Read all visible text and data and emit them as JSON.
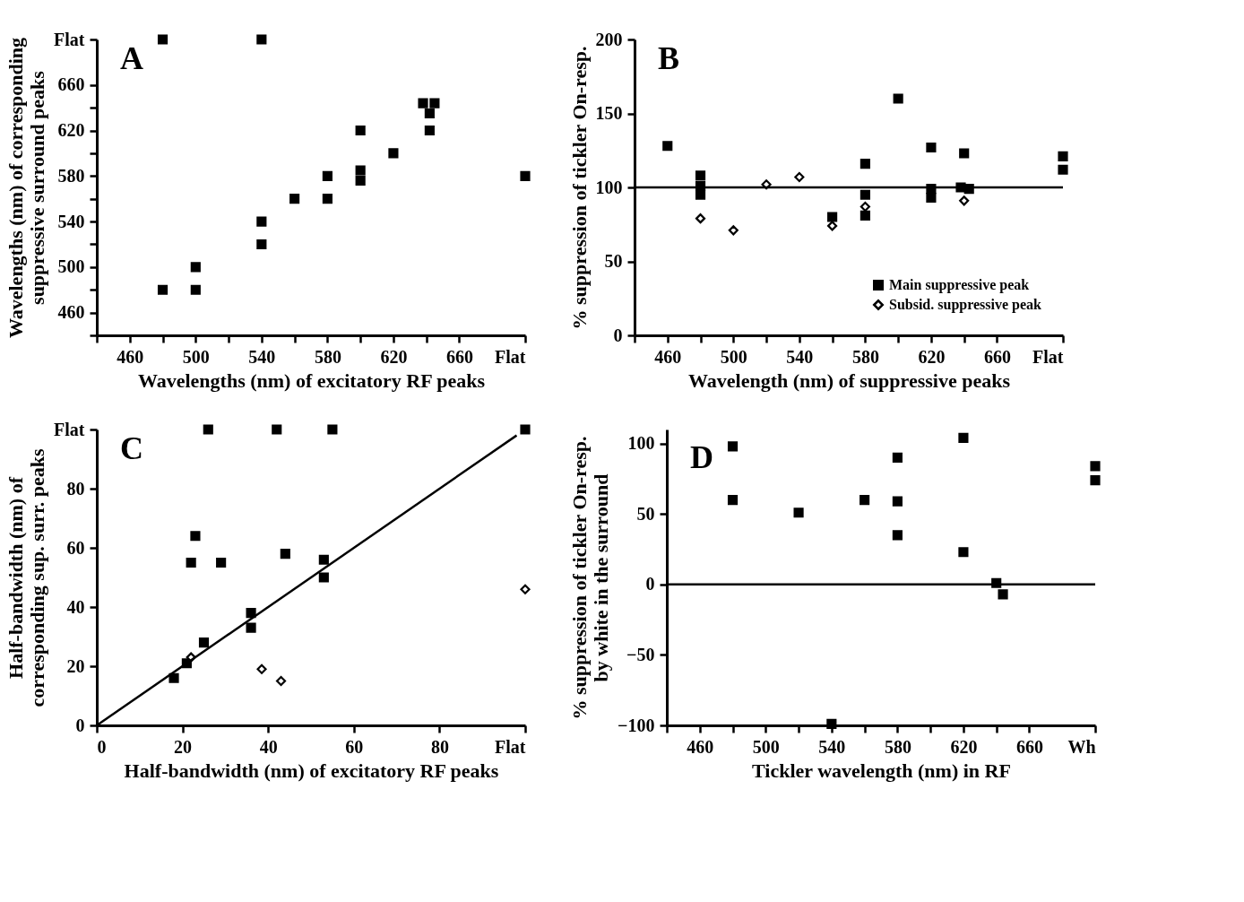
{
  "chart_data": [
    {
      "type": "scatter",
      "title": "A",
      "xlabel": "Wavelengths (nm) of excitatory RF peaks",
      "ylabel": "Wavelengths (nm) of corresponding suppressive surround peaks",
      "xlim": [
        440,
        700
      ],
      "ylim": [
        440,
        700
      ],
      "xticks": [
        {
          "value": 440,
          "label": null
        },
        460,
        {
          "value": 480,
          "label": null
        },
        500,
        {
          "value": 520,
          "label": null
        },
        540,
        {
          "value": 560,
          "label": null
        },
        580,
        {
          "value": 600,
          "label": null
        },
        620,
        {
          "value": 640,
          "label": null
        },
        660,
        {
          "value": 700,
          "label": "Flat"
        }
      ],
      "yticks": [
        {
          "value": 440,
          "label": null
        },
        460,
        {
          "value": 480,
          "label": null
        },
        500,
        {
          "value": 520,
          "label": null
        },
        540,
        {
          "value": 560,
          "label": null
        },
        580,
        {
          "value": 600,
          "label": null
        },
        620,
        {
          "value": 640,
          "label": null
        },
        660,
        {
          "value": 700,
          "label": "Flat"
        }
      ],
      "grid": false,
      "series": [
        {
          "color": "#000000",
          "marker": "square",
          "x": [
            480,
            540,
            480,
            500,
            500,
            540,
            540,
            560,
            580,
            580,
            600,
            600,
            600,
            620,
            638,
            645,
            642,
            642,
            700
          ],
          "values": [
            700,
            700,
            480,
            480,
            500,
            520,
            540,
            560,
            560,
            580,
            576,
            585,
            620,
            600,
            644,
            644,
            635,
            620,
            580
          ]
        }
      ]
    },
    {
      "type": "scatter",
      "title": "B",
      "xlabel": "Wavelength (nm) of suppressive peaks",
      "ylabel": "% suppression of tickler On-resp.",
      "xlim": [
        440,
        700
      ],
      "ylim": [
        0,
        200
      ],
      "xticks": [
        {
          "value": 440,
          "label": null
        },
        460,
        {
          "value": 480,
          "label": null
        },
        500,
        {
          "value": 520,
          "label": null
        },
        540,
        {
          "value": 560,
          "label": null
        },
        580,
        {
          "value": 600,
          "label": null
        },
        620,
        {
          "value": 640,
          "label": null
        },
        660,
        {
          "value": 700,
          "label": "Flat"
        }
      ],
      "yticks": [
        0,
        50,
        100,
        150,
        200
      ],
      "grid": false,
      "legend": "bottom right",
      "ref_lines": [
        {
          "axis": "y",
          "value": 100,
          "color": "#000000"
        }
      ],
      "series": [
        {
          "name": "Main suppressive peak",
          "color": "#000000",
          "marker": "square",
          "x": [
            460,
            480,
            480,
            480,
            560,
            580,
            580,
            580,
            600,
            620,
            620,
            620,
            640,
            638,
            643,
            700,
            700
          ],
          "values": [
            128,
            108,
            101,
            95,
            80,
            116,
            95,
            81,
            160,
            127,
            99,
            93,
            123,
            100,
            99,
            121,
            112
          ]
        },
        {
          "name": "Subsid. suppressive peak",
          "color": "#000000",
          "marker": "diamond",
          "x": [
            480,
            500,
            520,
            540,
            560,
            580,
            640
          ],
          "values": [
            79,
            71,
            102,
            107,
            74,
            87,
            91
          ]
        }
      ]
    },
    {
      "type": "scatter",
      "title": "C",
      "xlabel": "Half-bandwidth (nm) of excitatory RF peaks",
      "ylabel": "Half-bandwidth (nm) of corresponding sup. surr. peaks",
      "xlim": [
        0,
        100
      ],
      "ylim": [
        0,
        100
      ],
      "xticks": [
        0,
        20,
        40,
        60,
        80,
        {
          "value": 100,
          "label": "Flat"
        }
      ],
      "yticks": [
        0,
        20,
        40,
        60,
        80,
        {
          "value": 100,
          "label": "Flat"
        }
      ],
      "grid": false,
      "series": [
        {
          "color": "#000000",
          "marker": "square",
          "x": [
            26,
            42,
            55,
            100,
            23,
            22,
            29,
            44,
            53,
            53,
            36,
            36,
            25,
            21,
            18
          ],
          "values": [
            100,
            100,
            100,
            100,
            64,
            55,
            55,
            58,
            56,
            50,
            38,
            33,
            28,
            21,
            16
          ]
        },
        {
          "color": "#000000",
          "marker": "diamond",
          "x": [
            22,
            38.5,
            43,
            100
          ],
          "values": [
            23,
            19,
            15,
            46
          ]
        },
        {
          "type": "line",
          "color": "#000000",
          "x": [
            0,
            98
          ],
          "values": [
            0,
            98
          ]
        }
      ]
    },
    {
      "type": "scatter",
      "title": "D",
      "xlabel": "Tickler wavelength (nm) in RF",
      "ylabel": "% suppression of tickler On-resp. by white in the surround",
      "xlim": [
        440,
        700
      ],
      "ylim": [
        -100,
        110
      ],
      "xticks": [
        {
          "value": 440,
          "label": null
        },
        460,
        {
          "value": 480,
          "label": null
        },
        500,
        {
          "value": 520,
          "label": null
        },
        540,
        {
          "value": 560,
          "label": null
        },
        580,
        {
          "value": 600,
          "label": null
        },
        620,
        {
          "value": 640,
          "label": null
        },
        660,
        {
          "value": 700,
          "label": "Wh"
        }
      ],
      "yticks": [
        -100,
        -50,
        0,
        50,
        100
      ],
      "grid": false,
      "ref_lines": [
        {
          "axis": "y",
          "value": 0,
          "color": "#000000"
        }
      ],
      "series": [
        {
          "color": "#000000",
          "marker": "square",
          "x": [
            480,
            480,
            520,
            560,
            580,
            580,
            580,
            620,
            620,
            640,
            644,
            700,
            700,
            540
          ],
          "values": [
            98,
            60,
            51,
            60,
            90,
            59,
            35,
            104,
            23,
            1,
            -7,
            84,
            74,
            -99
          ]
        }
      ]
    }
  ]
}
